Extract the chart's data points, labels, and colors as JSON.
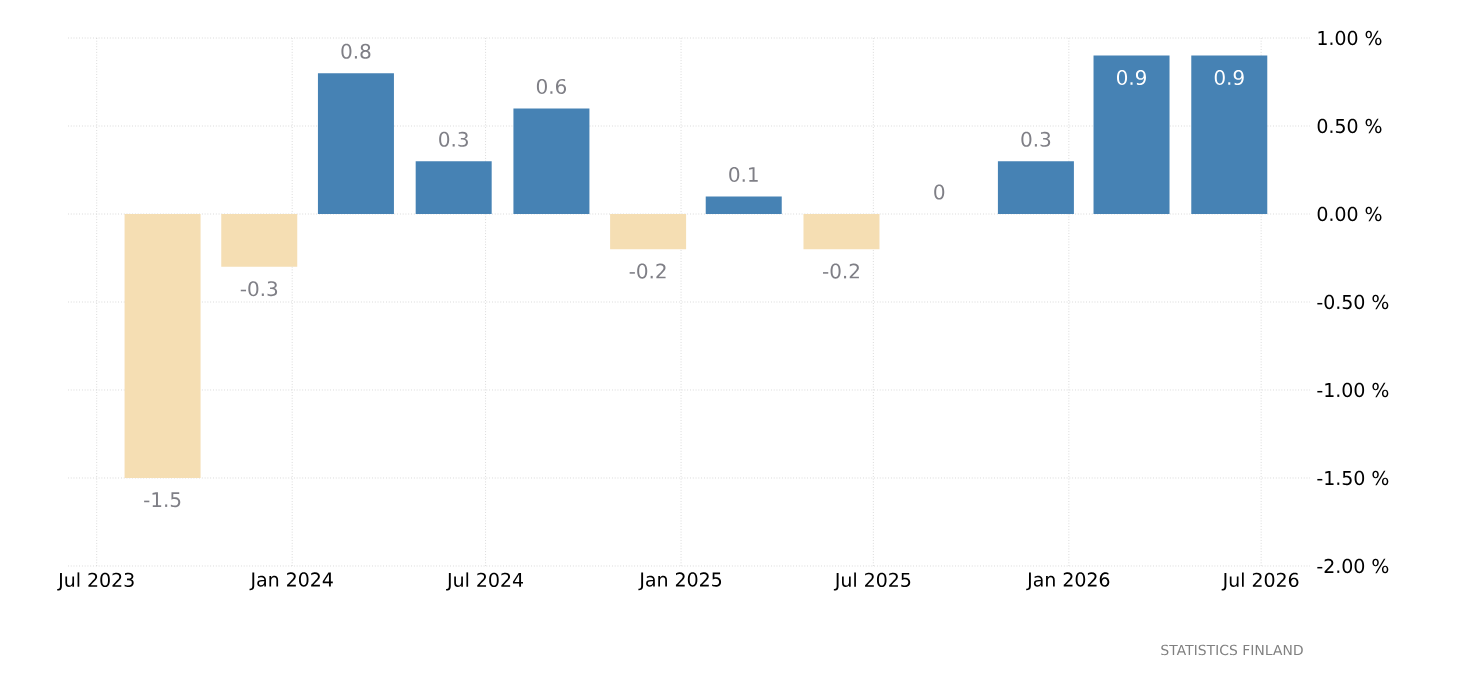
{
  "chart_data": {
    "type": "bar",
    "x": [
      "2023-09",
      "2023-12",
      "2024-03",
      "2024-06",
      "2024-09",
      "2024-12",
      "2025-03",
      "2025-06",
      "2025-09",
      "2025-12",
      "2026-03",
      "2026-06"
    ],
    "values": [
      -1.5,
      -0.3,
      0.8,
      0.3,
      0.6,
      -0.2,
      0.1,
      -0.2,
      0,
      0.3,
      0.9,
      0.9
    ],
    "colors": [
      "#f5deb3",
      "#f5deb3",
      "#4682b4",
      "#4682b4",
      "#4682b4",
      "#f5deb3",
      "#4682b4",
      "#f5deb3",
      "#4682b4",
      "#4682b4",
      "#4682b4",
      "#4682b4"
    ],
    "xlim": [
      "2023-06-04",
      "2026-08-16"
    ],
    "xticks": [
      {
        "value": "2023-07",
        "label": "Jul 2023"
      },
      {
        "value": "2024-01",
        "label": "Jan 2024"
      },
      {
        "value": "2024-07",
        "label": "Jul 2024"
      },
      {
        "value": "2025-01",
        "label": "Jan 2025"
      },
      {
        "value": "2025-07",
        "label": "Jul 2025"
      },
      {
        "value": "2026-01",
        "label": "Jan 2026"
      },
      {
        "value": "2026-07",
        "label": "Jul 2026"
      }
    ],
    "ylim": [
      -2,
      1
    ],
    "yticks": [
      {
        "value": 1,
        "label": "1.00 %"
      },
      {
        "value": 0.5,
        "label": "0.50 %"
      },
      {
        "value": 0,
        "label": "0.00 %"
      },
      {
        "value": -0.5,
        "label": "-0.50 %"
      },
      {
        "value": -1,
        "label": "-1.00 %"
      },
      {
        "value": -1.5,
        "label": "-1.50 %"
      },
      {
        "value": -2,
        "label": "-2.00 %"
      }
    ],
    "grid": true,
    "data_labels": true,
    "annotations": [
      "STATISTICS FINLAND"
    ]
  }
}
